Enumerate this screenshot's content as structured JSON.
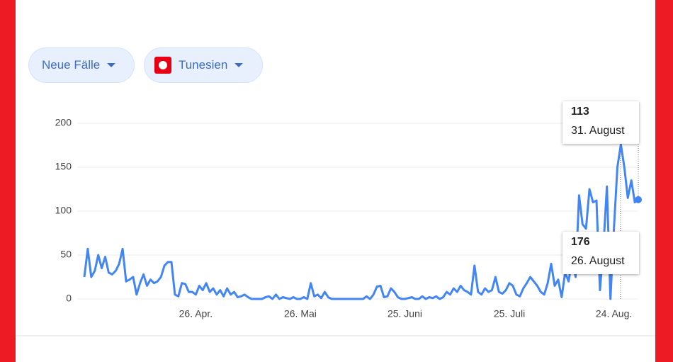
{
  "controls": {
    "metric": "Neue Fälle",
    "region": "Tunesien"
  },
  "chart_data": {
    "type": "line",
    "color": "#4285f4",
    "categories": [
      null,
      null,
      null,
      null,
      null,
      null,
      null,
      null,
      null,
      null,
      null,
      null,
      null,
      null,
      null,
      null,
      null,
      null,
      null,
      null,
      null,
      null,
      null,
      null,
      null,
      null,
      null,
      null,
      null,
      null,
      null,
      null,
      "26. Apr.",
      null,
      null,
      null,
      null,
      null,
      null,
      null,
      null,
      null,
      null,
      null,
      null,
      null,
      null,
      null,
      null,
      null,
      null,
      null,
      null,
      null,
      null,
      null,
      null,
      null,
      null,
      null,
      null,
      null,
      "26. Mai",
      null,
      null,
      null,
      null,
      null,
      null,
      null,
      null,
      null,
      null,
      null,
      null,
      null,
      null,
      null,
      null,
      null,
      null,
      null,
      null,
      null,
      null,
      null,
      null,
      null,
      null,
      null,
      null,
      null,
      "25. Juni",
      null,
      null,
      null,
      null,
      null,
      null,
      null,
      null,
      null,
      null,
      null,
      null,
      null,
      null,
      null,
      null,
      null,
      null,
      null,
      null,
      null,
      null,
      null,
      null,
      null,
      null,
      null,
      null,
      null,
      "25. Juli",
      null,
      null,
      null,
      null,
      null,
      null,
      null,
      null,
      null,
      null,
      null,
      null,
      null,
      null,
      null,
      null,
      null,
      null,
      null,
      null,
      null,
      null,
      null,
      null,
      null,
      null,
      null,
      null,
      null,
      "24. Aug.",
      null,
      null,
      null,
      null,
      null,
      null,
      null
    ],
    "values": [
      25,
      57,
      25,
      32,
      50,
      35,
      48,
      30,
      28,
      32,
      40,
      57,
      20,
      22,
      25,
      5,
      18,
      28,
      15,
      22,
      18,
      20,
      25,
      38,
      42,
      42,
      5,
      3,
      18,
      17,
      8,
      8,
      5,
      15,
      10,
      18,
      8,
      12,
      5,
      10,
      3,
      12,
      5,
      8,
      2,
      3,
      5,
      2,
      0,
      0,
      0,
      0,
      2,
      3,
      0,
      5,
      0,
      2,
      1,
      0,
      2,
      0,
      0,
      2,
      0,
      18,
      3,
      5,
      1,
      8,
      2,
      0,
      0,
      0,
      0,
      0,
      0,
      0,
      0,
      0,
      0,
      3,
      0,
      5,
      14,
      15,
      2,
      3,
      12,
      8,
      2,
      0,
      0,
      1,
      2,
      0,
      0,
      3,
      0,
      2,
      1,
      3,
      0,
      2,
      8,
      5,
      12,
      8,
      15,
      10,
      8,
      5,
      38,
      8,
      5,
      12,
      8,
      10,
      25,
      8,
      6,
      10,
      18,
      15,
      5,
      3,
      12,
      18,
      25,
      20,
      15,
      8,
      5,
      18,
      40,
      15,
      22,
      2,
      30,
      20,
      45,
      25,
      118,
      85,
      80,
      125,
      110,
      112,
      10,
      60,
      128,
      0,
      80,
      150,
      176,
      150,
      115,
      135,
      110,
      113
    ],
    "ylim": [
      0,
      200
    ],
    "yticks": [
      0,
      50,
      100,
      150,
      200
    ],
    "grid": true,
    "tooltips": [
      {
        "value": 113,
        "date": "31. August"
      },
      {
        "value": 176,
        "date": "26. August"
      }
    ]
  }
}
